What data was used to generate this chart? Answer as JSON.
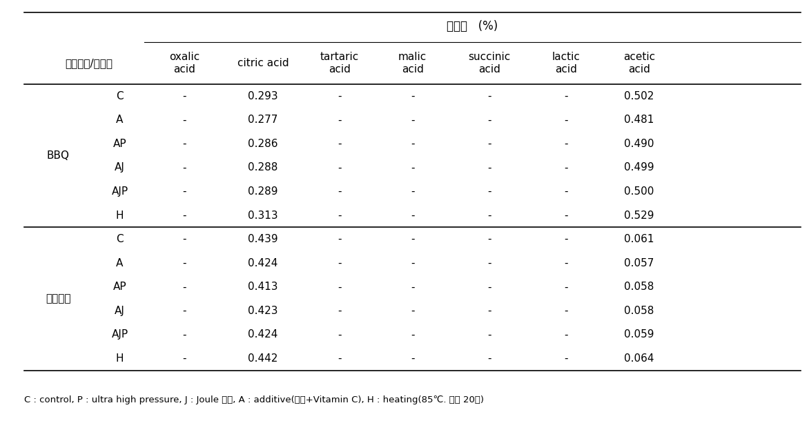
{
  "title": "유기산   (%)",
  "col_header_row1": [
    "소스시료/처리구",
    "oxalic\nacid",
    "citric acid",
    "tartaric\nacid",
    "malic\nacid",
    "succinic\nacid",
    "lactic\nacid",
    "acetic\nacid"
  ],
  "groups": [
    {
      "group_label": "BBQ",
      "rows": [
        [
          "C",
          "-",
          "0.293",
          "-",
          "-",
          "-",
          "-",
          "0.502"
        ],
        [
          "A",
          "-",
          "0.277",
          "-",
          "-",
          "-",
          "-",
          "0.481"
        ],
        [
          "AP",
          "-",
          "0.286",
          "-",
          "-",
          "-",
          "-",
          "0.490"
        ],
        [
          "AJ",
          "-",
          "0.288",
          "-",
          "-",
          "-",
          "-",
          "0.499"
        ],
        [
          "AJP",
          "-",
          "0.289",
          "-",
          "-",
          "-",
          "-",
          "0.500"
        ],
        [
          "H",
          "-",
          "0.313",
          "-",
          "-",
          "-",
          "-",
          "0.529"
        ]
      ]
    },
    {
      "group_label": "치킨소스",
      "rows": [
        [
          "C",
          "-",
          "0.439",
          "-",
          "-",
          "-",
          "-",
          "0.061"
        ],
        [
          "A",
          "-",
          "0.424",
          "-",
          "-",
          "-",
          "-",
          "0.057"
        ],
        [
          "AP",
          "-",
          "0.413",
          "-",
          "-",
          "-",
          "-",
          "0.058"
        ],
        [
          "AJ",
          "-",
          "0.423",
          "-",
          "-",
          "-",
          "-",
          "0.058"
        ],
        [
          "AJP",
          "-",
          "0.424",
          "-",
          "-",
          "-",
          "-",
          "0.059"
        ],
        [
          "H",
          "-",
          "0.442",
          "-",
          "-",
          "-",
          "-",
          "0.064"
        ]
      ]
    }
  ],
  "footnote": "C : control, P : ultra high pressure, J : Joule 가열, A : additive(주정+Vitamin C), H : heating(85℃. 중탕 20분)",
  "background_color": "#ffffff",
  "text_color": "#000000",
  "font_size": 11,
  "footnote_font_size": 9.5
}
